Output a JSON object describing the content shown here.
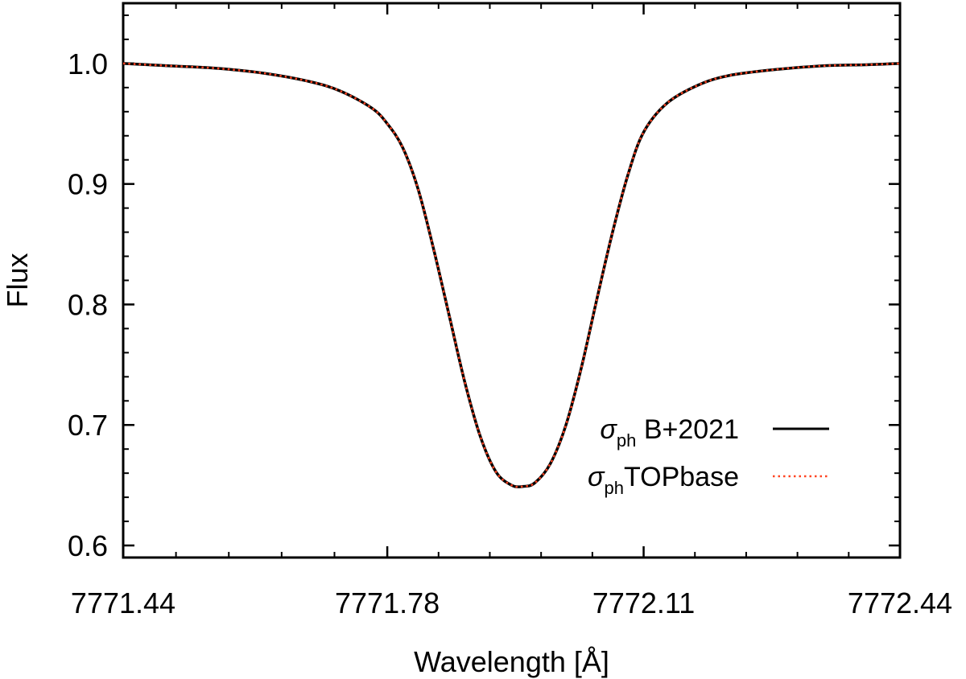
{
  "chart_data": {
    "type": "line",
    "xlabel": "Wavelength [Å]",
    "ylabel": "Flux",
    "xlim": [
      7771.44,
      7772.44
    ],
    "ylim": [
      0.59,
      1.05
    ],
    "xticks": [
      7771.44,
      7771.78,
      7772.11,
      7772.44
    ],
    "xtick_labels": [
      "7771.44",
      "7771.78",
      "7772.11",
      "7772.44"
    ],
    "yticks": [
      0.6,
      0.7,
      0.8,
      0.9,
      1.0
    ],
    "ytick_labels": [
      "0.6",
      "0.7",
      "0.8",
      "0.9",
      "1.0"
    ],
    "grid": false,
    "legend_position": "bottom-right",
    "series": [
      {
        "name_symbol": "σ",
        "name_sub": "ph",
        "name_rest": " B+2021",
        "color": "#000000",
        "style": "solid",
        "x": [
          7771.44,
          7771.5,
          7771.56,
          7771.62,
          7771.68,
          7771.72,
          7771.76,
          7771.78,
          7771.8,
          7771.82,
          7771.84,
          7771.86,
          7771.88,
          7771.9,
          7771.92,
          7771.94,
          7771.955,
          7771.97,
          7771.99,
          7772.01,
          7772.03,
          7772.05,
          7772.07,
          7772.09,
          7772.11,
          7772.14,
          7772.18,
          7772.22,
          7772.28,
          7772.34,
          7772.4,
          7772.44
        ],
        "y": [
          1.0,
          0.998,
          0.996,
          0.992,
          0.985,
          0.977,
          0.963,
          0.95,
          0.93,
          0.895,
          0.845,
          0.79,
          0.735,
          0.69,
          0.661,
          0.65,
          0.649,
          0.652,
          0.668,
          0.7,
          0.748,
          0.805,
          0.86,
          0.908,
          0.943,
          0.967,
          0.982,
          0.99,
          0.995,
          0.998,
          0.999,
          1.0
        ]
      },
      {
        "name_symbol": "σ",
        "name_sub": "ph",
        "name_rest": "TOPbase",
        "color": "#ff4422",
        "style": "dotted",
        "x": [
          7771.44,
          7771.5,
          7771.56,
          7771.62,
          7771.68,
          7771.72,
          7771.76,
          7771.78,
          7771.8,
          7771.82,
          7771.84,
          7771.86,
          7771.88,
          7771.9,
          7771.92,
          7771.94,
          7771.955,
          7771.97,
          7771.99,
          7772.01,
          7772.03,
          7772.05,
          7772.07,
          7772.09,
          7772.11,
          7772.14,
          7772.18,
          7772.22,
          7772.28,
          7772.34,
          7772.4,
          7772.44
        ],
        "y": [
          1.0,
          0.998,
          0.996,
          0.992,
          0.985,
          0.977,
          0.963,
          0.95,
          0.93,
          0.895,
          0.845,
          0.79,
          0.735,
          0.69,
          0.661,
          0.65,
          0.649,
          0.652,
          0.668,
          0.7,
          0.748,
          0.805,
          0.86,
          0.908,
          0.943,
          0.967,
          0.982,
          0.99,
          0.995,
          0.998,
          0.999,
          1.0
        ]
      }
    ]
  }
}
